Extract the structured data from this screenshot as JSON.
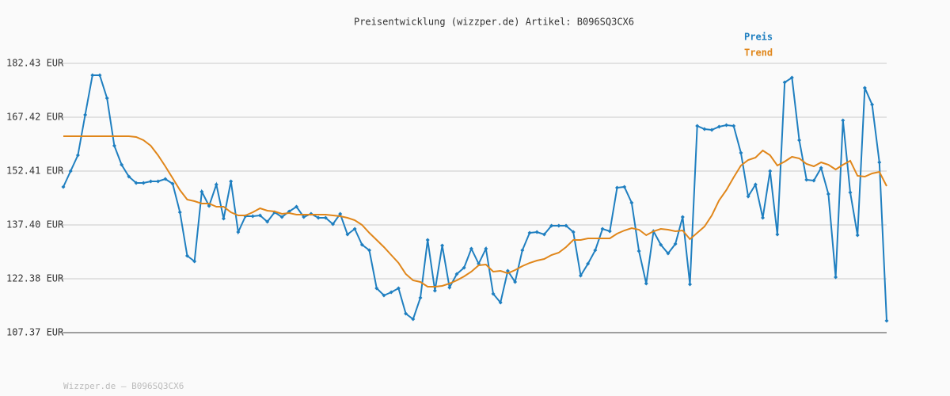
{
  "chart_data": {
    "type": "line",
    "title": "Preisentwicklung (wizzper.de) Artikel: B096SQ3CX6",
    "footer": "Wizzper.de – B096SQ3CX6",
    "categories": [
      null,
      null,
      null,
      null,
      null,
      null,
      null,
      null,
      null,
      null,
      null,
      null,
      null,
      null,
      null,
      null,
      null,
      null,
      null,
      null,
      null,
      null,
      null,
      null,
      null,
      null,
      null,
      null,
      null,
      null,
      null,
      null,
      null,
      null,
      null,
      null,
      null,
      null,
      null,
      null,
      null,
      null,
      null,
      null,
      null,
      null,
      null,
      null,
      null,
      null,
      null,
      null,
      null,
      null,
      null,
      null,
      null,
      null,
      null,
      null,
      null,
      null,
      null,
      null,
      null,
      null,
      null,
      null,
      null,
      null,
      null,
      null,
      null,
      null,
      null,
      null,
      null,
      null,
      null,
      null,
      null,
      null,
      null,
      null,
      null,
      null,
      null,
      null,
      null,
      null,
      null,
      null,
      null,
      null,
      null,
      null,
      null,
      null,
      null,
      null,
      null,
      null,
      null,
      null,
      null,
      null,
      null,
      null,
      null,
      null,
      null,
      null,
      null,
      null
    ],
    "series": [
      {
        "name": "Preis",
        "color": "#1f7fc0",
        "markers": true,
        "values": [
          147.99,
          152.41,
          156.82,
          168.08,
          179.12,
          179.12,
          172.72,
          159.47,
          154.17,
          150.86,
          149.1,
          149.1,
          149.54,
          149.54,
          150.2,
          148.87,
          140.93,
          128.79,
          127.24,
          146.67,
          142.69,
          148.65,
          139.16,
          149.54,
          135.41,
          139.82,
          139.82,
          140.04,
          138.28,
          140.93,
          139.6,
          141.15,
          142.47,
          139.6,
          140.49,
          139.38,
          139.38,
          137.62,
          140.49,
          134.75,
          136.29,
          131.88,
          130.33,
          119.73,
          117.75,
          118.63,
          119.73,
          112.67,
          111.12,
          117.09,
          133.2,
          119.07,
          131.66,
          119.95,
          123.71,
          125.47,
          130.77,
          126.58,
          130.77,
          118.19,
          115.76,
          124.59,
          121.5,
          130.33,
          135.19,
          135.41,
          134.75,
          137.17,
          137.17,
          137.17,
          135.41,
          123.27,
          126.58,
          130.33,
          136.29,
          135.63,
          147.77,
          147.99,
          143.58,
          130.11,
          121.06,
          135.63,
          131.88,
          129.45,
          132.1,
          139.6,
          120.84,
          164.99,
          164.11,
          163.89,
          164.77,
          165.21,
          164.99,
          157.48,
          145.34,
          148.65,
          139.38,
          152.41,
          134.75,
          177.13,
          178.46,
          161.02,
          149.98,
          149.76,
          153.29,
          146.0,
          122.82,
          166.54,
          146.45,
          134.53,
          175.59,
          170.95,
          154.83,
          110.68
        ]
      },
      {
        "name": "Trend",
        "color": "#e0861a",
        "markers": false,
        "values": [
          162.12,
          162.12,
          162.12,
          162.12,
          162.12,
          162.12,
          162.12,
          162.12,
          162.12,
          162.12,
          161.9,
          161.02,
          159.47,
          156.82,
          153.73,
          150.42,
          147.11,
          144.46,
          144.02,
          143.36,
          143.36,
          142.47,
          142.47,
          140.93,
          140.04,
          140.04,
          140.93,
          142.03,
          141.37,
          141.15,
          140.49,
          140.71,
          140.26,
          140.26,
          140.26,
          140.26,
          140.26,
          140.04,
          139.82,
          139.38,
          138.72,
          137.39,
          135.19,
          133.2,
          131.21,
          129.01,
          126.8,
          123.71,
          121.94,
          121.5,
          120.18,
          120.18,
          120.4,
          121.06,
          121.94,
          123.05,
          124.37,
          126.14,
          126.36,
          124.37,
          124.59,
          123.93,
          124.81,
          125.92,
          126.8,
          127.46,
          127.9,
          129.01,
          129.67,
          131.21,
          133.2,
          133.2,
          133.64,
          133.64,
          133.64,
          133.64,
          134.97,
          135.85,
          136.51,
          136.07,
          134.53,
          135.63,
          136.29,
          136.07,
          135.63,
          135.85,
          133.42,
          135.19,
          136.95,
          140.04,
          144.24,
          147.11,
          150.64,
          153.95,
          155.5,
          156.16,
          158.15,
          156.82,
          153.95,
          155.06,
          156.38,
          155.94,
          154.39,
          153.73,
          154.83,
          154.17,
          152.85,
          154.17,
          155.28,
          151.08,
          150.86,
          151.74,
          152.19,
          148.21
        ]
      }
    ],
    "ylim": [
      107.37,
      182.43
    ],
    "yticks": [
      {
        "value": 107.37,
        "label": "107.37 EUR"
      },
      {
        "value": 122.38,
        "label": "122.38 EUR"
      },
      {
        "value": 137.4,
        "label": "137.40 EUR"
      },
      {
        "value": 152.41,
        "label": "152.41 EUR"
      },
      {
        "value": 167.42,
        "label": "167.42 EUR"
      },
      {
        "value": 182.43,
        "label": "182.43 EUR"
      }
    ],
    "grid": true
  }
}
